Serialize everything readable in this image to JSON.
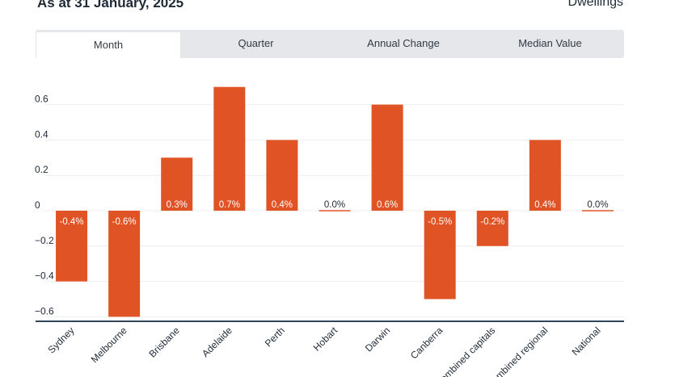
{
  "header": {
    "as_at": "As at 31 January, 2025",
    "property_type": "Dwellings"
  },
  "tabs": [
    {
      "label": "Month",
      "active": true
    },
    {
      "label": "Quarter",
      "active": false
    },
    {
      "label": "Annual Change",
      "active": false
    },
    {
      "label": "Median Value",
      "active": false
    }
  ],
  "colors": {
    "bar": "#e05325",
    "grid": "#eeeeee",
    "axis": "#33475b"
  },
  "chart_data": {
    "type": "bar",
    "categories": [
      "Sydney",
      "Melbourne",
      "Brisbane",
      "Adelaide",
      "Perth",
      "Hobart",
      "Darwin",
      "Canberra",
      "Combined capitals",
      "Combined regional",
      "National"
    ],
    "values": [
      -0.4,
      -0.6,
      0.3,
      0.7,
      0.4,
      0.0,
      0.6,
      -0.5,
      -0.2,
      0.4,
      0.0
    ],
    "data_labels": [
      "-0.4%",
      "-0.6%",
      "0.3%",
      "0.7%",
      "0.4%",
      "0.0%",
      "0.6%",
      "-0.5%",
      "-0.2%",
      "0.4%",
      "0.0%"
    ],
    "yticks": [
      0.6,
      0.4,
      0.2,
      0,
      -0.2,
      -0.4,
      -0.6
    ],
    "ytick_labels": [
      "0.6",
      "0.4",
      "0.2",
      "0",
      "−0.2",
      "−0.4",
      "−0.6"
    ],
    "ylim": [
      -0.62,
      0.72
    ],
    "grid": true,
    "title": "",
    "xlabel": "",
    "ylabel": ""
  }
}
